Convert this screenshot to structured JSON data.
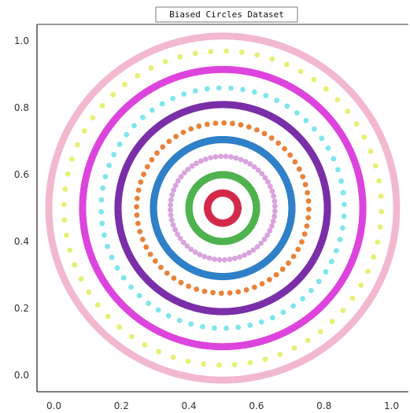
{
  "chart_data": {
    "type": "scatter",
    "title": "Biased Circles Dataset",
    "xlabel": "",
    "ylabel": "",
    "xlim": [
      -0.05,
      1.05
    ],
    "ylim": [
      -0.05,
      1.05
    ],
    "x_ticks": [
      "0.0",
      "0.2",
      "0.4",
      "0.6",
      "0.8",
      "1.0"
    ],
    "y_ticks": [
      "0.0",
      "0.2",
      "0.4",
      "0.6",
      "0.8",
      "1.0"
    ],
    "grid": false,
    "legend": "none",
    "center": [
      0.5,
      0.5
    ],
    "rings": [
      {
        "radius": 0.515,
        "color": "#f2b8d0",
        "count": 400
      },
      {
        "radius": 0.47,
        "color": "#e6f075",
        "count": 64
      },
      {
        "radius": 0.415,
        "color": "#dd44dd",
        "count": 400
      },
      {
        "radius": 0.36,
        "color": "#7ee6ec",
        "count": 64
      },
      {
        "radius": 0.31,
        "color": "#7a2ea8",
        "count": 400
      },
      {
        "radius": 0.255,
        "color": "#e8823a",
        "count": 64
      },
      {
        "radius": 0.205,
        "color": "#2f80c8",
        "count": 400
      },
      {
        "radius": 0.155,
        "color": "#d9a3de",
        "count": 64
      },
      {
        "radius": 0.1,
        "color": "#4fb24f",
        "count": 300
      },
      {
        "radius": 0.045,
        "color": "#d42a4a",
        "count": 200
      }
    ]
  }
}
